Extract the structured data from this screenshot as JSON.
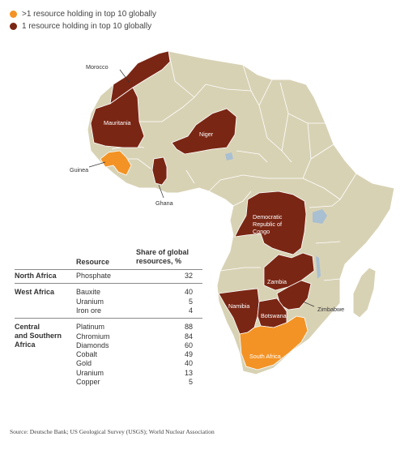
{
  "colors": {
    "more_than_one": "#f39325",
    "one": "#7a2614",
    "land": "#d8d2b5",
    "water": "#a9bfd2",
    "border": "#ffffff"
  },
  "legend": {
    "items": [
      {
        "label": ">1 resource holding in top 10 globally",
        "color": "#f39325"
      },
      {
        "label": "1 resource holding in top 10 globally",
        "color": "#7a2614"
      }
    ]
  },
  "map": {
    "labels": {
      "morocco": "Morocco",
      "mauritania": "Mauritania",
      "niger": "Niger",
      "guinea": "Guinea",
      "ghana": "Ghana",
      "drc": "Democratic\nRepublic of\nCongo",
      "zambia": "Zambia",
      "namibia": "Namibia",
      "botswana": "Botswana",
      "zimbabwe": "Zimbabwe",
      "south_africa": "South Africa"
    }
  },
  "table": {
    "col_resource": "Resource",
    "col_share": "Share of global\nresources, %",
    "regions": [
      {
        "name": "North Africa",
        "rows": [
          {
            "resource": "Phosphate",
            "share": "32"
          }
        ]
      },
      {
        "name": "West Africa",
        "rows": [
          {
            "resource": "Bauxite",
            "share": "40"
          },
          {
            "resource": "Uranium",
            "share": "5"
          },
          {
            "resource": "Iron ore",
            "share": "4"
          }
        ]
      },
      {
        "name": "Central\nand Southern\nAfrica",
        "rows": [
          {
            "resource": "Platinum",
            "share": "88"
          },
          {
            "resource": "Chromium",
            "share": "84"
          },
          {
            "resource": "Diamonds",
            "share": "60"
          },
          {
            "resource": "Cobalt",
            "share": "49"
          },
          {
            "resource": "Gold",
            "share": "40"
          },
          {
            "resource": "Uranium",
            "share": "13"
          },
          {
            "resource": "Copper",
            "share": "5"
          }
        ]
      }
    ]
  },
  "source": "Source: Deutsche Bank; US Geological Survey (USGS); World Nuclear Association"
}
